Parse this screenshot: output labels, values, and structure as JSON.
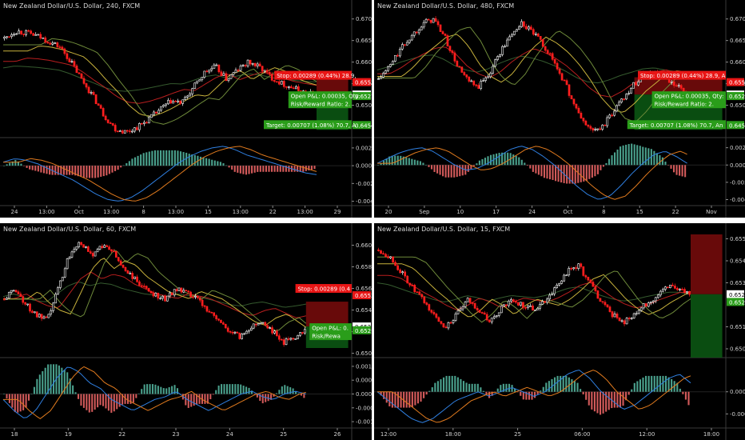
{
  "colors": {
    "background": "#000000",
    "separator": "#ffffff",
    "up_candle": "#ffffff",
    "down_candle": "#ff1e1e",
    "text": "#cfcfcf",
    "ma_fast": "#6e8a3a",
    "ma_mid": "#c8b23c",
    "ma_slow": "#b81e1e",
    "ma_long": "#355a2e",
    "macd_line": "#2f7fe0",
    "signal_line": "#e07a1e",
    "hist_up": "#4aa08c",
    "hist_down": "#d25a5a",
    "stop_zone": "#7a0c0c",
    "target_zone": "#0c5a14",
    "stop_label": "#e81515",
    "pnl_label": "#2a9d1a",
    "price_tag_red": "#e81515",
    "price_tag_green": "#2a9d1a",
    "price_tag_white": "#ffffff"
  },
  "chart_data": [
    {
      "type": "candlestick",
      "title": "New Zealand Dollar/U.S. Dollar, 240, FXCM",
      "price_axis": {
        "ticks": [
          "0.67000",
          "0.66500",
          "0.66000",
          "0.65500",
          "0.65000"
        ],
        "range": [
          0.6425,
          0.6718
        ]
      },
      "x_ticks": [
        "24",
        "13:00",
        "Oct",
        "13:00",
        "8",
        "13:00",
        "15",
        "13:00",
        "22",
        "13:00",
        "29"
      ],
      "price_path": [
        0.6655,
        0.6672,
        0.6668,
        0.666,
        0.6648,
        0.6635,
        0.66,
        0.6558,
        0.652,
        0.6475,
        0.6445,
        0.6438,
        0.645,
        0.6468,
        0.649,
        0.651,
        0.6505,
        0.654,
        0.6575,
        0.659,
        0.656,
        0.6582,
        0.66,
        0.6588,
        0.6565,
        0.655,
        0.654,
        0.653,
        0.6525
      ],
      "overlays": [
        {
          "text": "Stop: 0.00289 (0.44%) 28.9,",
          "kind": "stop"
        },
        {
          "text": "Open P&L: 0.00035, Qty:",
          "kind": "pnl"
        },
        {
          "text": "Risk/Reward Ratio: 2.",
          "kind": "pnl"
        },
        {
          "text": "Target: 0.00707 (1.08%) 70.7, A",
          "kind": "pnl"
        }
      ],
      "price_tags": [
        {
          "value": "0.65537",
          "kind": "red"
        },
        {
          "value": "0.65248",
          "kind": "white"
        },
        {
          "value": "0.65213",
          "kind": "green"
        },
        {
          "value": "0.64541",
          "kind": "green"
        }
      ],
      "macd_axis": {
        "ticks": [
          "0.0020",
          "0.0000",
          "-0.0020",
          "-0.0040"
        ],
        "range": [
          -0.0044,
          0.0028
        ]
      },
      "macd_path": [
        0.0004,
        0.0008,
        0.0006,
        0.0002,
        -0.0004,
        -0.001,
        -0.0016,
        -0.0024,
        -0.0032,
        -0.0038,
        -0.004,
        -0.0036,
        -0.0028,
        -0.0018,
        -0.0008,
        0.0002,
        0.001,
        0.0016,
        0.002,
        0.0022,
        0.0018,
        0.0012,
        0.0008,
        0.0004,
        0.0,
        -0.0004,
        -0.0008,
        -0.001
      ]
    },
    {
      "type": "candlestick",
      "title": "New Zealand Dollar/U.S. Dollar, 480, FXCM",
      "price_axis": {
        "ticks": [
          "0.67000",
          "0.66500",
          "0.66000",
          "0.65500",
          "0.65000"
        ],
        "range": [
          0.6425,
          0.6718
        ]
      },
      "x_ticks": [
        "20",
        "Sep",
        "10",
        "17",
        "24",
        "Oct",
        "8",
        "15",
        "22",
        "Nov"
      ],
      "price_path": [
        0.656,
        0.659,
        0.663,
        0.666,
        0.669,
        0.67,
        0.666,
        0.66,
        0.656,
        0.654,
        0.657,
        0.662,
        0.666,
        0.669,
        0.667,
        0.664,
        0.66,
        0.655,
        0.649,
        0.645,
        0.644,
        0.647,
        0.651,
        0.654,
        0.657,
        0.658,
        0.656,
        0.6545,
        0.653
      ],
      "overlays": [
        {
          "text": "Stop: 0.00289 (0.44%) 28.9, A",
          "kind": "stop"
        },
        {
          "text": "Open P&L: 0.00035, Qty:",
          "kind": "pnl"
        },
        {
          "text": "Risk/Reward Ratio: 2.",
          "kind": "pnl"
        },
        {
          "text": "Target: 0.00707 (1.08%) 70.7, An",
          "kind": "pnl"
        }
      ],
      "price_tags": [
        {
          "value": "0.65537",
          "kind": "red"
        },
        {
          "value": "0.65248",
          "kind": "white"
        },
        {
          "value": "0.65213",
          "kind": "green"
        },
        {
          "value": "0.64541",
          "kind": "green"
        }
      ],
      "macd_axis": {
        "ticks": [
          "0.0020",
          "0.0000",
          "-0.0020",
          "-0.0040"
        ],
        "range": [
          -0.0046,
          0.0028
        ]
      },
      "macd_path": [
        0.0002,
        0.0008,
        0.0014,
        0.0018,
        0.002,
        0.0016,
        0.0008,
        0.0,
        -0.0006,
        -0.0004,
        0.0002,
        0.001,
        0.0018,
        0.0022,
        0.0018,
        0.001,
        0.0,
        -0.0012,
        -0.0024,
        -0.0034,
        -0.004,
        -0.0036,
        -0.0024,
        -0.001,
        0.0002,
        0.0012,
        0.0016,
        0.001,
        0.0002
      ]
    },
    {
      "type": "candlestick",
      "title": "New Zealand Dollar/U.S. Dollar, 60, FXCM",
      "price_axis": {
        "ticks": [
          "0.66000",
          "0.65800",
          "0.65600",
          "0.65400",
          "0.65200",
          "0.65000"
        ],
        "range": [
          0.6496,
          0.661
        ]
      },
      "x_ticks": [
        "18",
        "19",
        "22",
        "23",
        "24",
        "25",
        "26"
      ],
      "price_path": [
        0.655,
        0.656,
        0.6545,
        0.6535,
        0.653,
        0.656,
        0.659,
        0.6605,
        0.659,
        0.66,
        0.6595,
        0.658,
        0.657,
        0.656,
        0.6555,
        0.655,
        0.656,
        0.6555,
        0.655,
        0.654,
        0.653,
        0.652,
        0.6515,
        0.6525,
        0.653,
        0.652,
        0.651,
        0.6515,
        0.6522
      ],
      "overlays": [
        {
          "text": "Stop: 0.00289 (0.4",
          "kind": "stop"
        },
        {
          "text": "Open P&L: 0.",
          "kind": "pnl"
        },
        {
          "text": "Risk/Rewa",
          "kind": "pnl"
        }
      ],
      "price_tags": [
        {
          "value": "0.65537",
          "kind": "red"
        },
        {
          "value": "0.65248",
          "kind": "white"
        },
        {
          "value": "0.65213",
          "kind": "green"
        }
      ],
      "macd_axis": {
        "ticks": [
          "0.0010",
          "0.0005",
          "0.0000",
          "-0.0005",
          "-0.0010"
        ],
        "range": [
          -0.0012,
          0.0012
        ]
      },
      "macd_path": [
        -0.0002,
        -0.0006,
        -0.0009,
        -0.0006,
        0.0,
        0.0006,
        0.001,
        0.0008,
        0.0004,
        0.0002,
        -0.0002,
        -0.0004,
        -0.0006,
        -0.0004,
        -0.0002,
        -0.0001,
        0.0001,
        -0.0002,
        -0.0004,
        -0.0006,
        -0.0004,
        -0.0002,
        0.0,
        0.0001,
        -0.0001,
        -0.0002,
        0.0,
        0.0001,
        0.0
      ]
    },
    {
      "type": "candlestick",
      "title": "New Zealand Dollar/U.S. Dollar, 15, FXCM",
      "price_axis": {
        "ticks": [
          "0.65500",
          "0.65400",
          "0.65300",
          "0.65100",
          "0.65000"
        ],
        "range": [
          0.6496,
          0.6552
        ]
      },
      "x_ticks": [
        "12:00",
        "18:00",
        "25",
        "06:00",
        "12:00",
        "18:00"
      ],
      "price_path": [
        0.6545,
        0.6542,
        0.6535,
        0.6528,
        0.6522,
        0.6515,
        0.651,
        0.6515,
        0.6522,
        0.6518,
        0.6512,
        0.6518,
        0.6522,
        0.652,
        0.6518,
        0.6522,
        0.6528,
        0.6535,
        0.6538,
        0.653,
        0.6522,
        0.6516,
        0.6512,
        0.6515,
        0.652,
        0.6524,
        0.6528,
        0.6528,
        0.6524
      ],
      "overlays": [],
      "price_tags": [
        {
          "value": "0.65248",
          "kind": "white"
        },
        {
          "value": "0.65213",
          "kind": "green"
        }
      ],
      "macd_axis": {
        "ticks": [
          "0.0000",
          "-0.0005"
        ],
        "range": [
          -0.0008,
          0.0007
        ]
      },
      "macd_path": [
        0.0,
        -0.0002,
        -0.0004,
        -0.0006,
        -0.0007,
        -0.0006,
        -0.0004,
        -0.0002,
        -0.0001,
        0.0,
        -0.0001,
        0.0,
        0.0001,
        0.0,
        -0.0001,
        0.0,
        0.0002,
        0.0004,
        0.0005,
        0.0003,
        0.0,
        -0.0002,
        -0.0004,
        -0.0003,
        -0.0001,
        0.0001,
        0.0003,
        0.0004,
        0.0002
      ]
    }
  ]
}
